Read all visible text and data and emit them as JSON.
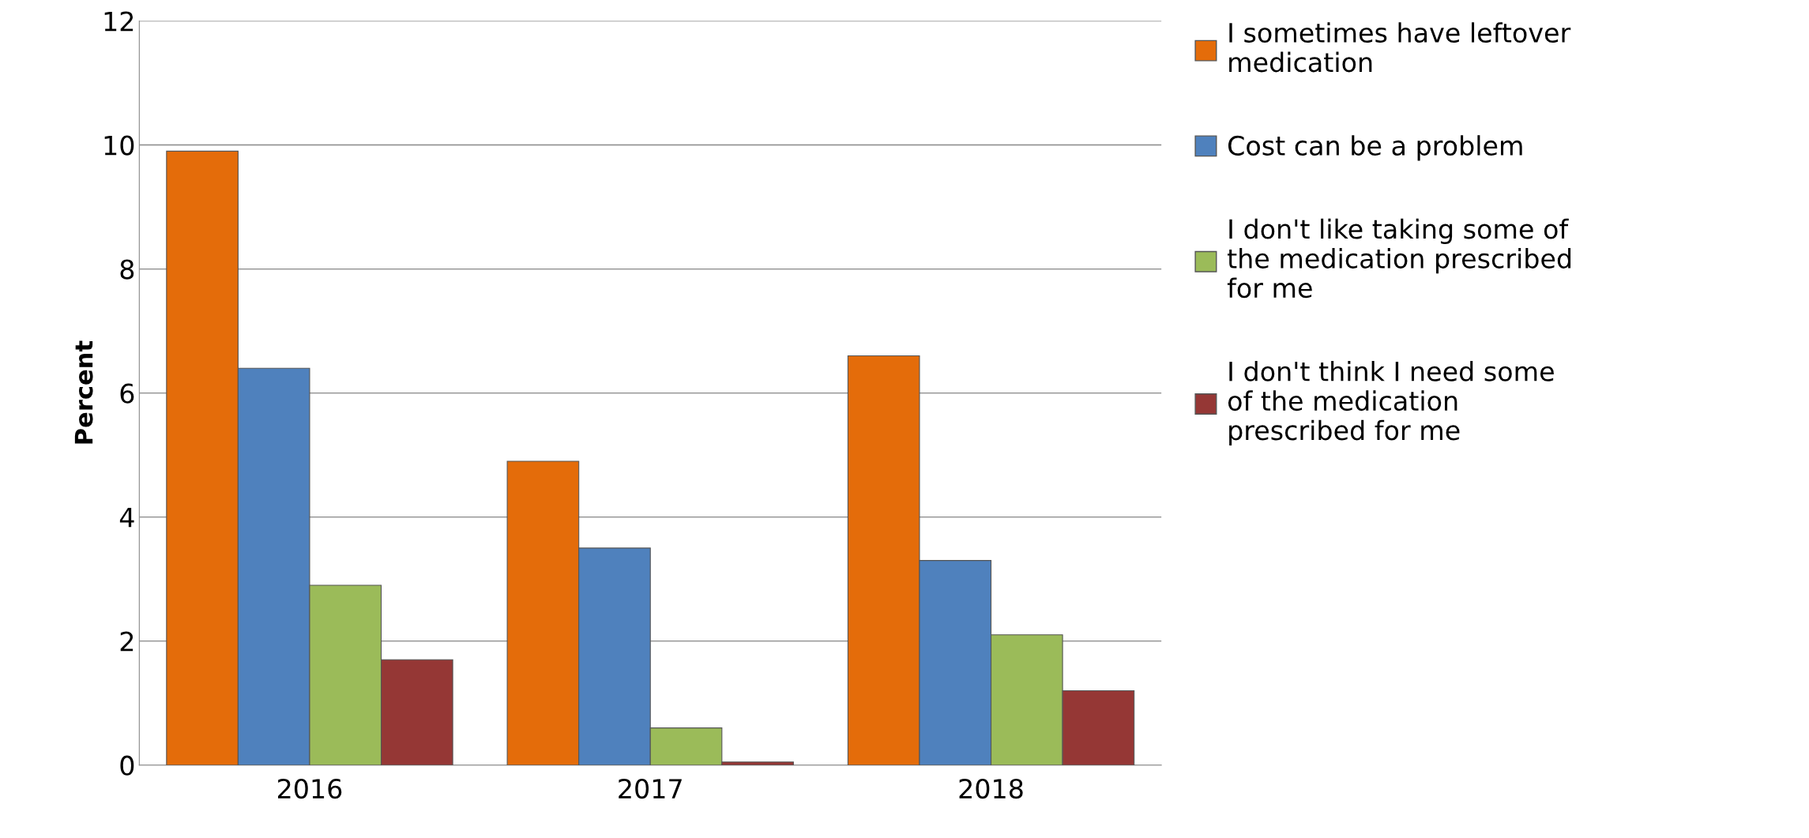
{
  "chart_data": {
    "type": "bar",
    "ylabel": "Percent",
    "categories": [
      "2016",
      "2017",
      "2018"
    ],
    "series": [
      {
        "name": "I sometimes have leftover medication",
        "color": "#e46c0a",
        "values": [
          9.9,
          4.9,
          6.6
        ]
      },
      {
        "name": "Cost can be a problem",
        "color": "#4f81bd",
        "values": [
          6.4,
          3.5,
          3.3
        ]
      },
      {
        "name": "I don't like taking some of the medication prescribed for me",
        "color": "#9bbb59",
        "values": [
          2.9,
          0.6,
          2.1
        ]
      },
      {
        "name": "I don't think I need some of the medication prescribed for me",
        "color": "#953735",
        "values": [
          1.7,
          0.05,
          1.2
        ]
      }
    ],
    "ylim": [
      0,
      12
    ],
    "yticks": [
      0,
      2,
      4,
      6,
      8,
      10,
      12
    ],
    "grid": "y",
    "legend": "right"
  }
}
